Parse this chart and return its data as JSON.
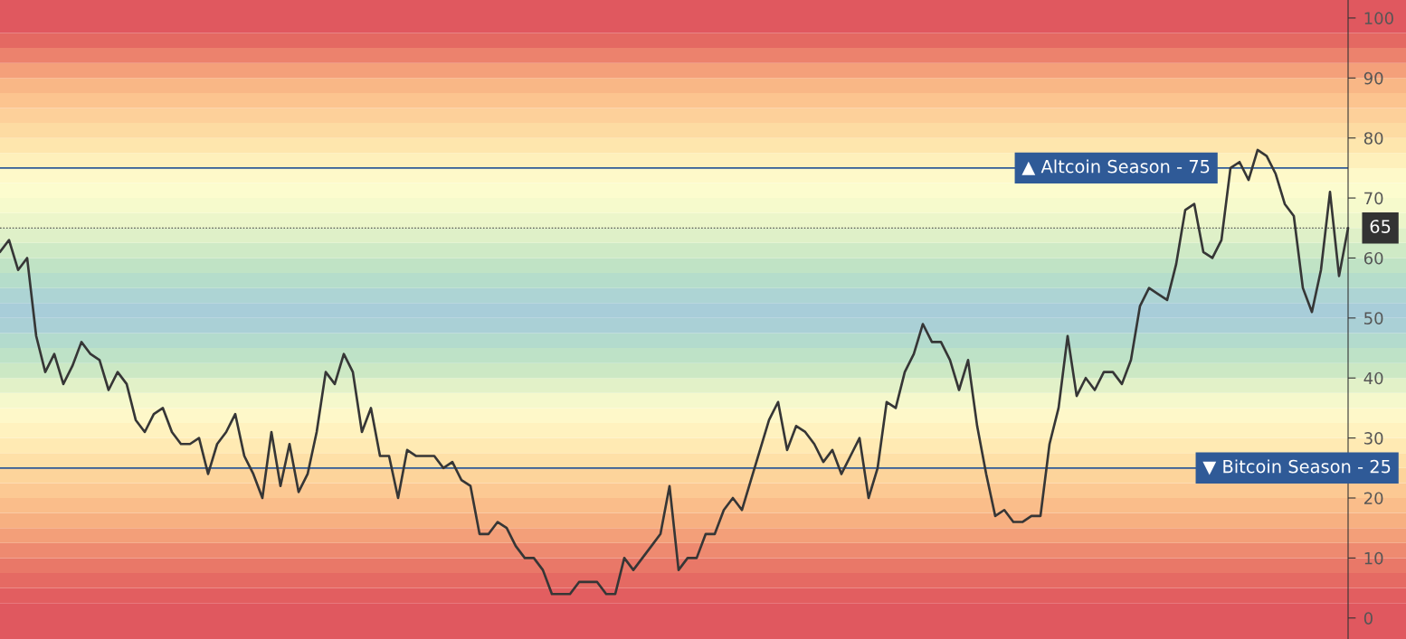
{
  "chart_data": {
    "type": "line",
    "categories": [
      null,
      null,
      null,
      null,
      null,
      null,
      null,
      null,
      null,
      null,
      null,
      null,
      null,
      null,
      null,
      null,
      null,
      null,
      null,
      null,
      null,
      null,
      null,
      null,
      null,
      null,
      null,
      null,
      null,
      null,
      null,
      null,
      null,
      null,
      null,
      null,
      null,
      null,
      null,
      null,
      null,
      null,
      null,
      null,
      null,
      null,
      null,
      null,
      null,
      null,
      null,
      null,
      null,
      null,
      null,
      null,
      null,
      null,
      null,
      null,
      null,
      null,
      null,
      null,
      null,
      null,
      null,
      null,
      null,
      null,
      null,
      null,
      null,
      null,
      null,
      null,
      null,
      null,
      null,
      null,
      null,
      null,
      null,
      null,
      null,
      null,
      null,
      null,
      null,
      null,
      null,
      null,
      null,
      null,
      null,
      null,
      null,
      null,
      null,
      null,
      null,
      null,
      null,
      null,
      null,
      null,
      null,
      null,
      null,
      null,
      null,
      null,
      null,
      null,
      null,
      null,
      null,
      null,
      null,
      null,
      null,
      null,
      null,
      null,
      null,
      null,
      null,
      null,
      null,
      null,
      null,
      null,
      null,
      null,
      null,
      null,
      null,
      null,
      null,
      null,
      null,
      null,
      null,
      null,
      null,
      null,
      null,
      null,
      null,
      null
    ],
    "series": [
      {
        "color": "#363636",
        "values": [
          61,
          63,
          58,
          60,
          47,
          41,
          44,
          39,
          42,
          46,
          44,
          43,
          38,
          41,
          39,
          33,
          31,
          34,
          35,
          31,
          29,
          29,
          30,
          24,
          29,
          31,
          34,
          27,
          24,
          20,
          31,
          22,
          29,
          21,
          24,
          31,
          41,
          39,
          44,
          41,
          31,
          35,
          27,
          27,
          20,
          28,
          27,
          27,
          27,
          25,
          26,
          23,
          22,
          14,
          14,
          16,
          15,
          12,
          10,
          10,
          8,
          4,
          4,
          4,
          6,
          6,
          6,
          4,
          4,
          10,
          8,
          10,
          12,
          14,
          22,
          8,
          10,
          10,
          14,
          14,
          18,
          20,
          18,
          23,
          28,
          33,
          36,
          28,
          32,
          31,
          29,
          26,
          28,
          24,
          27,
          30,
          20,
          25,
          36,
          35,
          41,
          44,
          49,
          46,
          46,
          43,
          38,
          43,
          32,
          24,
          17,
          18,
          16,
          16,
          17,
          17,
          29,
          35,
          47,
          37,
          40,
          38,
          41,
          41,
          39,
          43,
          52,
          55,
          54,
          53,
          59,
          68,
          69,
          61,
          60,
          63,
          75,
          76,
          73,
          78,
          77,
          74,
          69,
          67,
          55,
          51,
          58,
          71,
          57,
          65
        ]
      }
    ],
    "ylim": [
      -3.5,
      103
    ],
    "yticks": [
      0,
      10,
      20,
      30,
      40,
      50,
      60,
      70,
      80,
      90,
      100
    ],
    "tick_labels": "y",
    "ref_lines": [
      {
        "axis": "y",
        "value": 75,
        "label": "▲ Altcoin Season - 75",
        "color": "#2f5a97"
      },
      {
        "axis": "y",
        "value": 25,
        "label": "▼ Bitcoin Season - 25",
        "color": "#2f5a97"
      },
      {
        "axis": "y",
        "value": 65,
        "label": "65",
        "color": "#333333",
        "line_style": "dotted"
      }
    ],
    "bands": [
      {
        "axis": "y",
        "from": -3.5,
        "to": 2.5,
        "color": "#e0585f"
      },
      {
        "axis": "y",
        "from": 2.5,
        "to": 5,
        "color": "#e25e60"
      },
      {
        "axis": "y",
        "from": 5,
        "to": 7.5,
        "color": "#e56a63"
      },
      {
        "axis": "y",
        "from": 7.5,
        "to": 10,
        "color": "#e97868"
      },
      {
        "axis": "y",
        "from": 10,
        "to": 12.5,
        "color": "#ee8a70"
      },
      {
        "axis": "y",
        "from": 12.5,
        "to": 15,
        "color": "#f39f79"
      },
      {
        "axis": "y",
        "from": 15,
        "to": 17.5,
        "color": "#f7b081"
      },
      {
        "axis": "y",
        "from": 17.5,
        "to": 20,
        "color": "#fabd8a"
      },
      {
        "axis": "y",
        "from": 20,
        "to": 22.5,
        "color": "#fcc993"
      },
      {
        "axis": "y",
        "from": 22.5,
        "to": 25,
        "color": "#fdd49b"
      },
      {
        "axis": "y",
        "from": 25,
        "to": 27.5,
        "color": "#fee0a7"
      },
      {
        "axis": "y",
        "from": 27.5,
        "to": 30,
        "color": "#ffeab3"
      },
      {
        "axis": "y",
        "from": 30,
        "to": 32.5,
        "color": "#fff2bf"
      },
      {
        "axis": "y",
        "from": 32.5,
        "to": 35,
        "color": "#fef8c9"
      },
      {
        "axis": "y",
        "from": 35,
        "to": 37.5,
        "color": "#f5f8cc"
      },
      {
        "axis": "y",
        "from": 37.5,
        "to": 40,
        "color": "#e2f1c8"
      },
      {
        "axis": "y",
        "from": 40,
        "to": 42.5,
        "color": "#cce8c4"
      },
      {
        "axis": "y",
        "from": 42.5,
        "to": 45,
        "color": "#bee2c7"
      },
      {
        "axis": "y",
        "from": 45,
        "to": 47.5,
        "color": "#b3dbcd"
      },
      {
        "axis": "y",
        "from": 47.5,
        "to": 50,
        "color": "#aad0d6"
      },
      {
        "axis": "y",
        "from": 50,
        "to": 52.5,
        "color": "#a8cdd9"
      },
      {
        "axis": "y",
        "from": 52.5,
        "to": 55,
        "color": "#add4d4"
      },
      {
        "axis": "y",
        "from": 55,
        "to": 57.5,
        "color": "#b5ddcb"
      },
      {
        "axis": "y",
        "from": 57.5,
        "to": 60,
        "color": "#c0e3c5"
      },
      {
        "axis": "y",
        "from": 60,
        "to": 62.5,
        "color": "#cfeac6"
      },
      {
        "axis": "y",
        "from": 62.5,
        "to": 65,
        "color": "#dff0c8"
      },
      {
        "axis": "y",
        "from": 65,
        "to": 67.5,
        "color": "#ecf6ca"
      },
      {
        "axis": "y",
        "from": 67.5,
        "to": 70,
        "color": "#f6facc"
      },
      {
        "axis": "y",
        "from": 70,
        "to": 72.5,
        "color": "#fcfcce"
      },
      {
        "axis": "y",
        "from": 72.5,
        "to": 75,
        "color": "#fef9c9"
      },
      {
        "axis": "y",
        "from": 75,
        "to": 77.5,
        "color": "#fef0bb"
      },
      {
        "axis": "y",
        "from": 77.5,
        "to": 80,
        "color": "#fee6ad"
      },
      {
        "axis": "y",
        "from": 80,
        "to": 82.5,
        "color": "#fddba2"
      },
      {
        "axis": "y",
        "from": 82.5,
        "to": 85,
        "color": "#fdd09a"
      },
      {
        "axis": "y",
        "from": 85,
        "to": 87.5,
        "color": "#fcc48f"
      },
      {
        "axis": "y",
        "from": 87.5,
        "to": 90,
        "color": "#f9b786"
      },
      {
        "axis": "y",
        "from": 90,
        "to": 92.5,
        "color": "#f4a07a"
      },
      {
        "axis": "y",
        "from": 92.5,
        "to": 95,
        "color": "#ec826d"
      },
      {
        "axis": "y",
        "from": 95,
        "to": 97.5,
        "color": "#e46962"
      },
      {
        "axis": "y",
        "from": 97.5,
        "to": 103,
        "color": "#e0585f"
      }
    ]
  }
}
